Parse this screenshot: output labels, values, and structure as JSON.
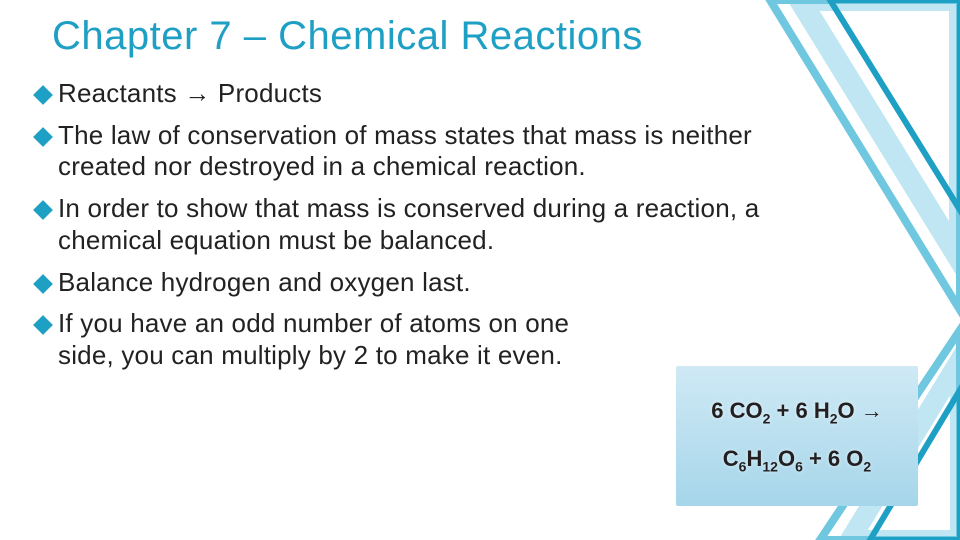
{
  "title": {
    "text": "Chapter 7 – Chemical Reactions",
    "color": "#1e9fc4",
    "font_size": 40
  },
  "bullets": [
    {
      "text": "Reactants → Products",
      "narrow": false
    },
    {
      "text": "The law of conservation of mass states that mass is neither created nor destroyed in a chemical reaction.",
      "narrow": false
    },
    {
      "text": "In order to show that mass is conserved during a reaction, a chemical equation must be balanced.",
      "narrow": false
    },
    {
      "text": "Balance hydrogen and oxygen last.",
      "narrow": false
    },
    {
      "text": "If you have an odd number of atoms on one side, you can multiply by 2 to make it even.",
      "narrow": true
    }
  ],
  "bullet_style": {
    "diamond_color": "#1e9fc4",
    "text_color": "#222222",
    "font_size": 26
  },
  "equation_box": {
    "bg_gradient_top": "#cfe9f5",
    "bg_gradient_bottom": "#a6d6ea",
    "line1_html": "6 CO<sub>2</sub> + 6 H<sub>2</sub>O →",
    "line2_html": "C<sub>6</sub>H<sub>12</sub>O<sub>6</sub> + 6 O<sub>2</sub>",
    "text_color": "#231f20",
    "font_size": 22
  },
  "decoration": {
    "stroke1": "#6fc7e0",
    "stroke2": "#1e9fc4",
    "stroke3": "#bfe6f2"
  }
}
